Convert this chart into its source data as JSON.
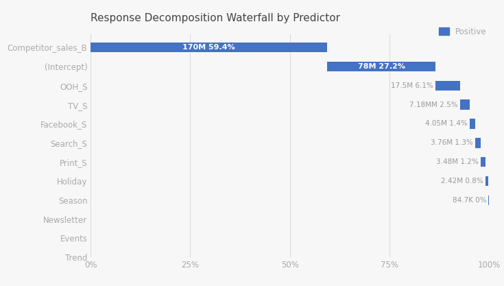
{
  "title": "Response Decomposition Waterfall by Predictor",
  "categories": [
    "Competitor_sales_B",
    "(Intercept)",
    "OOH_S",
    "TV_S",
    "Facebook_S",
    "Search_S",
    "Print_S",
    "Holiday",
    "Season",
    "Newsletter",
    "Events",
    "Trend"
  ],
  "percentages": [
    59.4,
    27.2,
    6.1,
    2.5,
    1.4,
    1.3,
    1.2,
    0.8,
    0.05,
    0.0,
    0.0,
    0.0
  ],
  "labels": [
    "170M 59.4%",
    "78M 27.2%",
    "17.5M 6.1%",
    "7.18MM 2.5%",
    "4.05M 1.4%",
    "3.76M 1.3%",
    "3.48M 1.2%",
    "2.42M 0.8%",
    "84.7K 0%",
    "",
    "",
    ""
  ],
  "bar_color": "#4472C4",
  "label_inside_color": "#ffffff",
  "label_outside_color": "#999999",
  "background_color": "#f7f7f7",
  "plot_bg_color": "#f7f7f7",
  "title_color": "#444444",
  "axis_label_color": "#aaaaaa",
  "tick_color": "#aaaaaa",
  "grid_color": "#dddddd",
  "legend_label": "Positive",
  "xlim": [
    0,
    100
  ],
  "xticks": [
    0,
    25,
    50,
    75,
    100
  ],
  "xtick_labels": [
    "0%",
    "25%",
    "50%",
    "75%",
    "100%"
  ],
  "figsize": [
    7.35,
    4.17
  ],
  "dpi": 100,
  "bar_height": 0.52
}
